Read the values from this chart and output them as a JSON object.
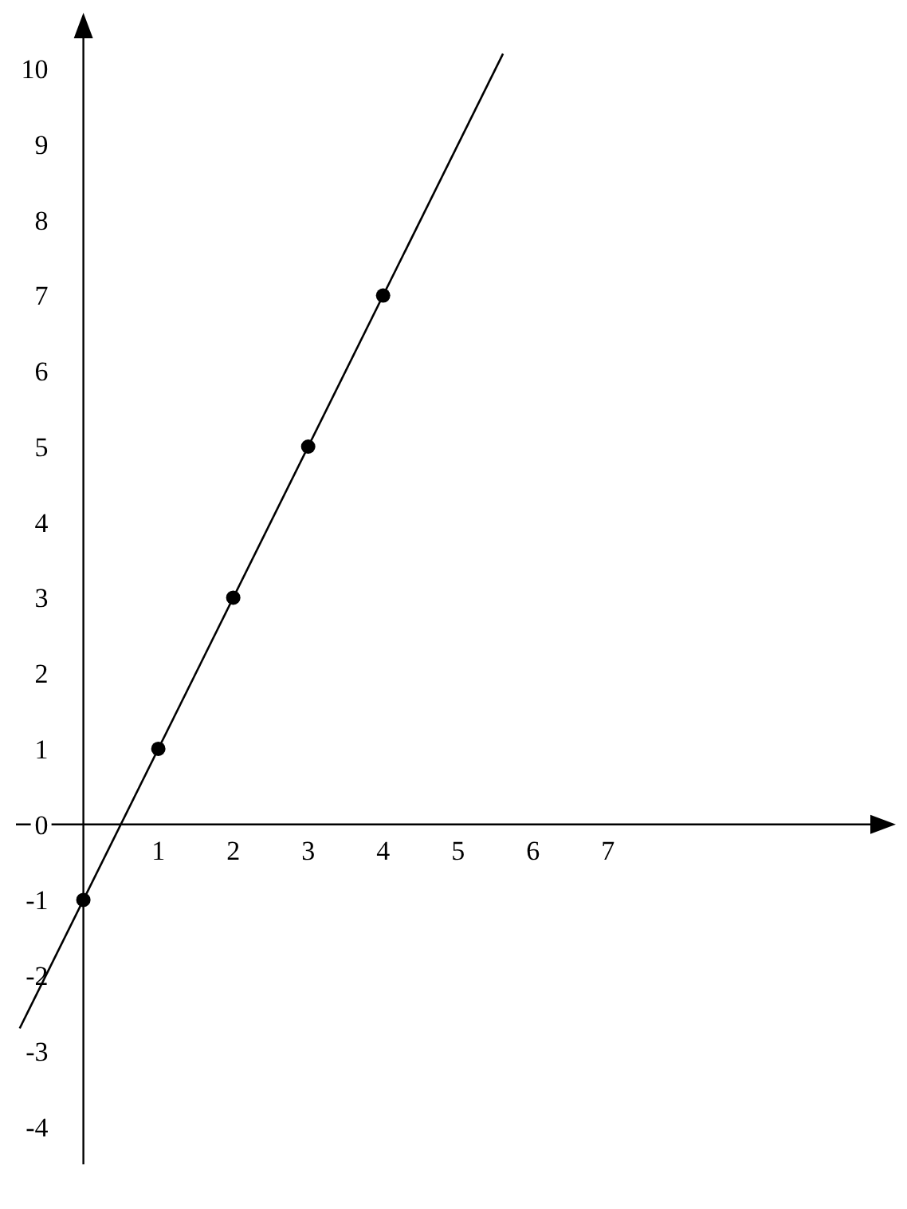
{
  "chart_data": {
    "type": "scatter",
    "xlim": [
      -0.9,
      10.8
    ],
    "ylim": [
      -4.5,
      10.7
    ],
    "xticks": [
      1,
      2,
      3,
      4,
      5,
      6,
      7
    ],
    "yticks": [
      -4,
      -3,
      -2,
      -1,
      0,
      1,
      2,
      3,
      4,
      5,
      6,
      7,
      8,
      9,
      10
    ],
    "series": [
      {
        "type": "line",
        "color": "#000000",
        "marker": "none",
        "x": [
          -0.85,
          5.6
        ],
        "values": [
          -2.7,
          10.2
        ]
      },
      {
        "color": "#000000",
        "marker": "circle",
        "x": [
          0,
          1,
          2,
          3,
          4
        ],
        "values": [
          -1,
          1,
          3,
          5,
          7
        ]
      }
    ]
  }
}
